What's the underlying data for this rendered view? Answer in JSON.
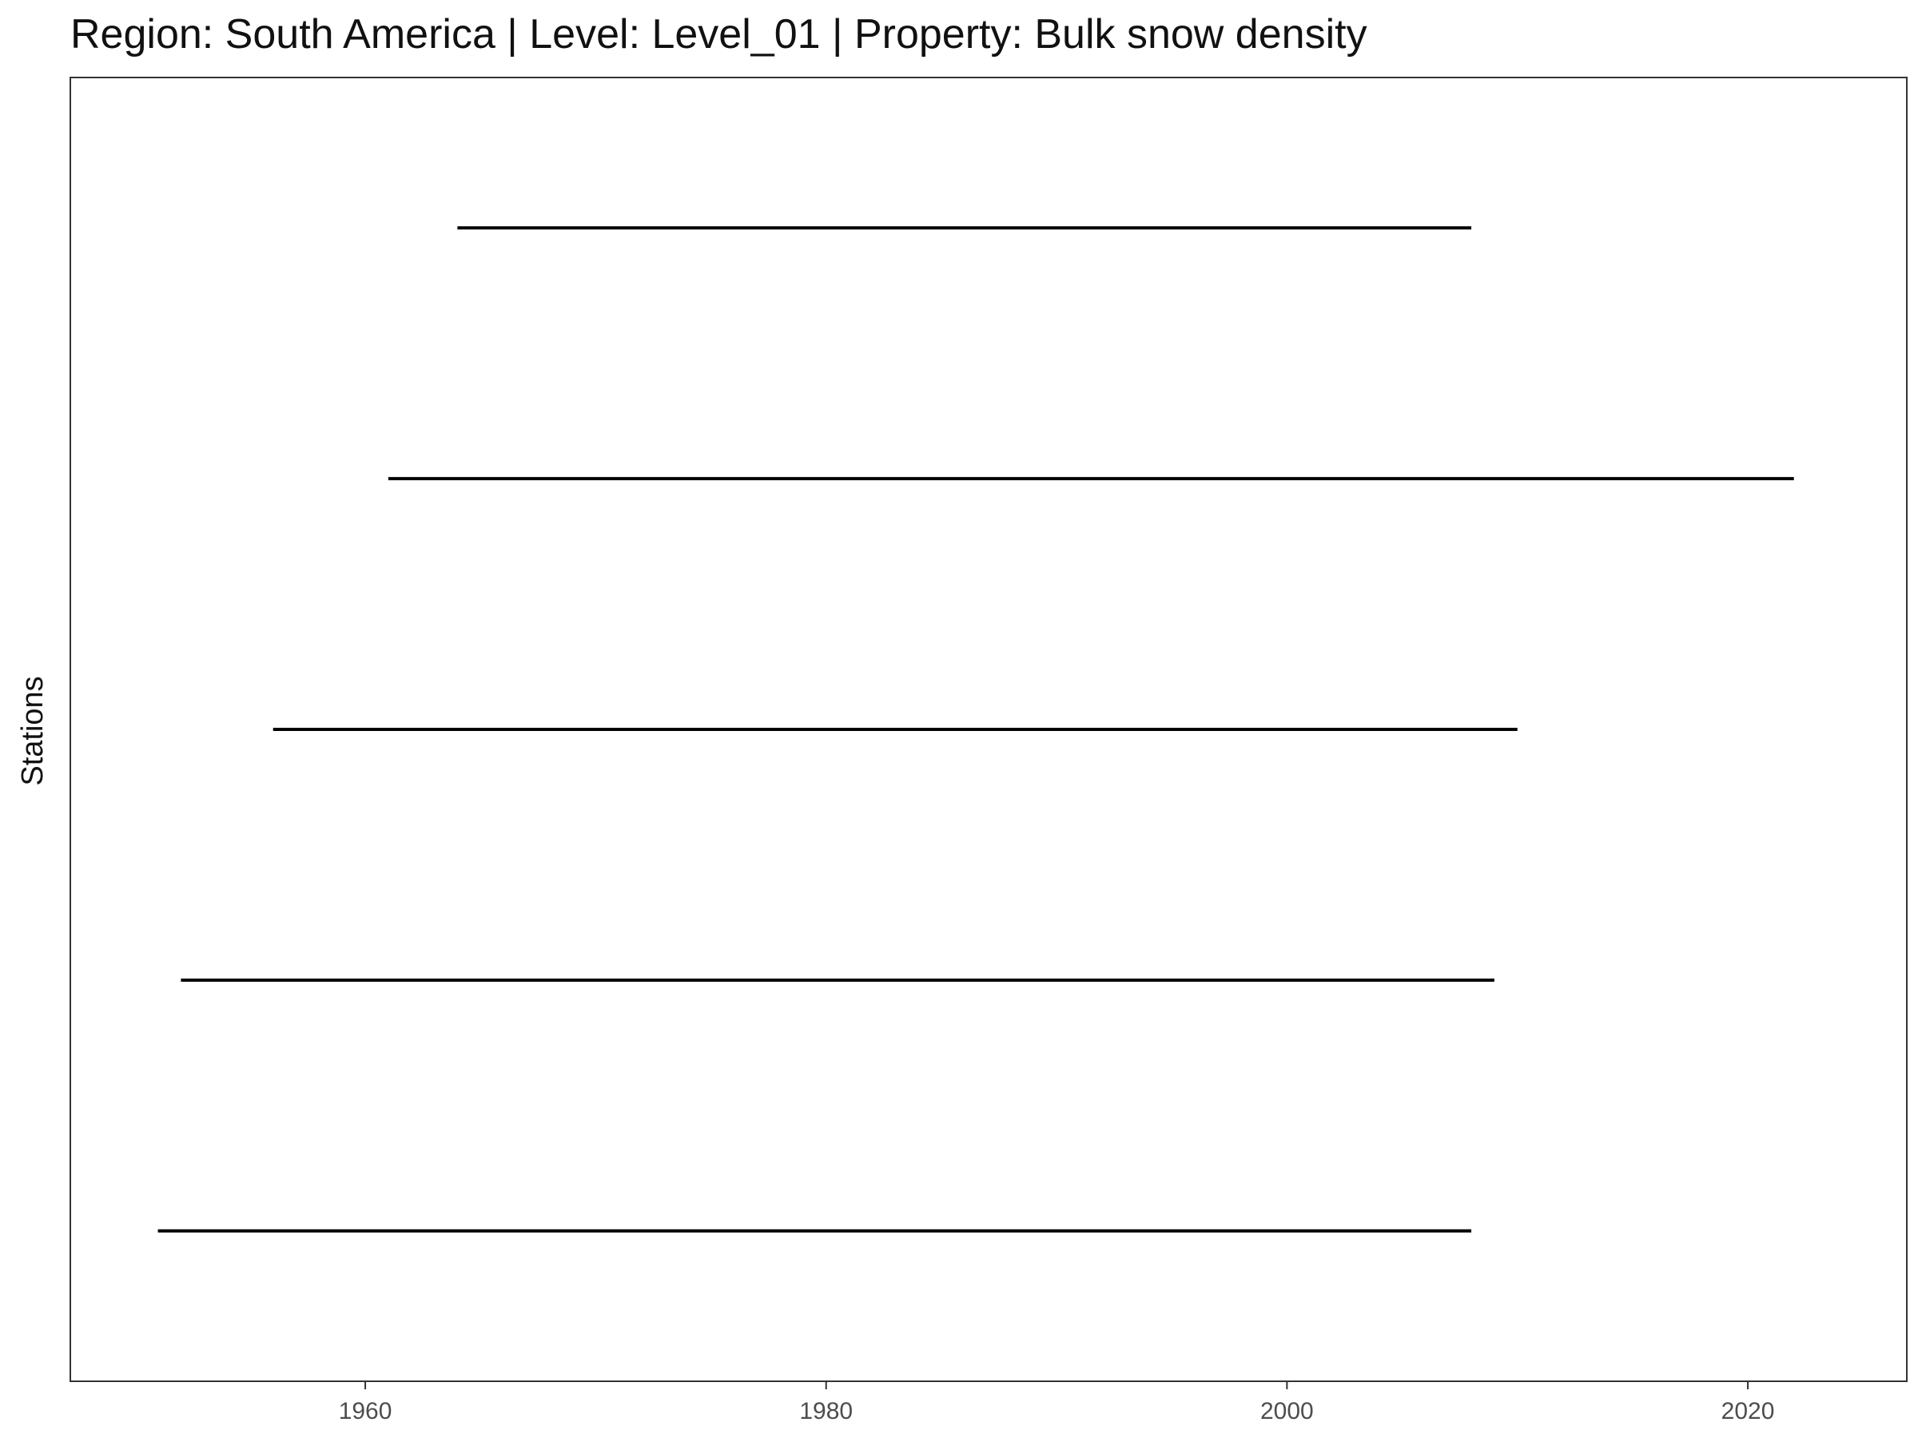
{
  "chart_data": {
    "type": "segment",
    "title": "Region: South America | Level: Level_01 | Property: Bulk snow density",
    "xlabel": "",
    "ylabel": "Stations",
    "xlim": [
      1947.2,
      2026.9
    ],
    "x_ticks": [
      1960,
      1980,
      2000,
      2020
    ],
    "y_tick_labels_visible": false,
    "grid": false,
    "legend": "none",
    "segments": [
      {
        "start": 1951,
        "end": 2008
      },
      {
        "start": 1952,
        "end": 2009
      },
      {
        "start": 1956,
        "end": 2010
      },
      {
        "start": 1961,
        "end": 2022
      },
      {
        "start": 1964,
        "end": 2008
      }
    ],
    "colors": {
      "segment": "#000000",
      "panel_border": "#333333",
      "tick": "#333333",
      "tick_label": "#4d4d4d",
      "background": "#ffffff"
    }
  }
}
